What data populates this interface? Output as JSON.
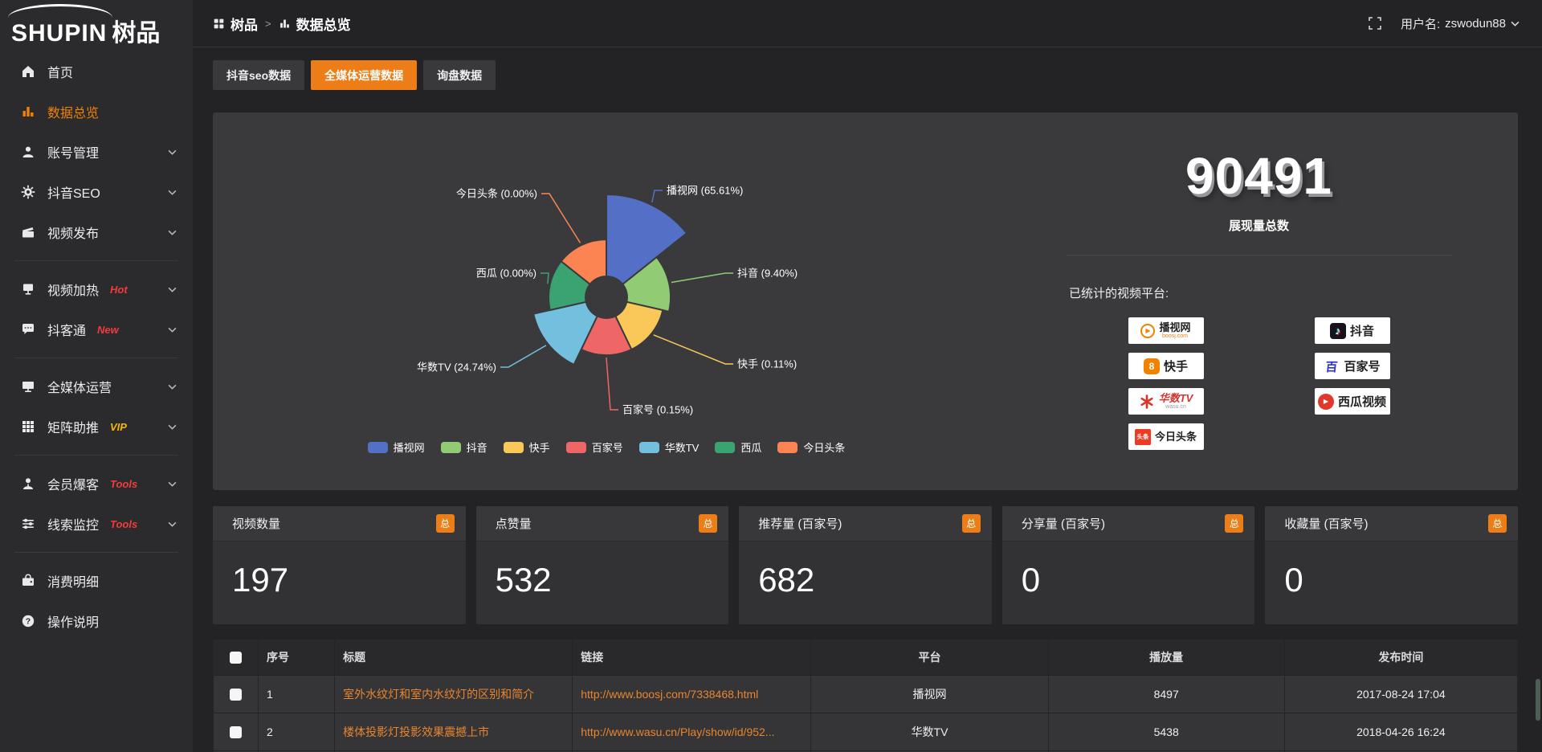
{
  "colors": {
    "accent_orange": "#ed7d17",
    "sidebar_active_orange": "#f08200",
    "link_orange": "#e8852e",
    "badge_red": "#f33b3b",
    "badge_gold": "#f5b60d",
    "panel_bg": "#3a3a3d",
    "page_bg": "#232326",
    "sidebar_bg": "#2b2b2e"
  },
  "logo": {
    "brand_en": "SHUPIN",
    "brand_cn": "树品"
  },
  "header": {
    "breadcrumb": [
      {
        "label": "树品",
        "icon": "app"
      },
      {
        "label": "数据总览",
        "icon": "chart"
      }
    ],
    "separator": ">",
    "username_label": "用户名:",
    "username": "zswodun88"
  },
  "sidebar": {
    "items": [
      {
        "id": "home",
        "label": "首页",
        "icon": "home"
      },
      {
        "id": "data-overview",
        "label": "数据总览",
        "icon": "chart",
        "active": true
      },
      {
        "id": "account-manage",
        "label": "账号管理",
        "icon": "user",
        "chevron": true
      },
      {
        "id": "douyin-seo",
        "label": "抖音SEO",
        "icon": "gear",
        "chevron": true
      },
      {
        "id": "video-publish",
        "label": "视频发布",
        "icon": "clapper",
        "chevron": true,
        "divider_after": true
      },
      {
        "id": "video-heat",
        "label": "视频加热",
        "icon": "heat",
        "badge": "Hot",
        "badge_color": "#f33b3b",
        "chevron": true
      },
      {
        "id": "douketong",
        "label": "抖客通",
        "icon": "comment",
        "badge": "New",
        "badge_color": "#f33b3b",
        "chevron": true,
        "divider_after": true
      },
      {
        "id": "media-operation",
        "label": "全媒体运营",
        "icon": "monitor",
        "chevron": true
      },
      {
        "id": "matrix-boost",
        "label": "矩阵助推",
        "icon": "grid",
        "badge": "VIP",
        "badge_color": "#f5b60d",
        "chevron": true,
        "divider_after": true
      },
      {
        "id": "member-burst",
        "label": "会员爆客",
        "icon": "person",
        "badge": "Tools",
        "badge_color": "#f33b3b",
        "chevron": true
      },
      {
        "id": "clue-monitor",
        "label": "线索监控",
        "icon": "sliders",
        "badge": "Tools",
        "badge_color": "#f33b3b",
        "chevron": true,
        "divider_after": true
      },
      {
        "id": "consume-detail",
        "label": "消费明细",
        "icon": "wallet"
      },
      {
        "id": "operation-help",
        "label": "操作说明",
        "icon": "question"
      }
    ]
  },
  "tabs": [
    {
      "label": "抖音seo数据",
      "active": false
    },
    {
      "label": "全媒体运营数据",
      "active": true
    },
    {
      "label": "询盘数据",
      "active": false
    }
  ],
  "chart_data": {
    "type": "pie",
    "variant": "nightingale-rose",
    "categories": [
      "播视网",
      "抖音",
      "快手",
      "百家号",
      "华数TV",
      "西瓜",
      "今日头条"
    ],
    "values": [
      65.61,
      9.4,
      0.11,
      0.15,
      24.74,
      0,
      0
    ],
    "percent_labels": [
      "65.61%",
      "9.40%",
      "0.11%",
      "0.15%",
      "24.74%",
      "0.00%",
      "0.00%"
    ],
    "colors": [
      "#5470c6",
      "#91cc75",
      "#fac858",
      "#ee6666",
      "#73c0de",
      "#3ba272",
      "#fc8452"
    ],
    "legend": [
      "播视网",
      "抖音",
      "快手",
      "百家号",
      "华数TV",
      "西瓜",
      "今日头条"
    ],
    "legend_position": "bottom"
  },
  "summary": {
    "total_value": "90491",
    "total_label": "展现量总数",
    "platforms_title": "已统计的视频平台:",
    "platforms": [
      {
        "id": "boosj",
        "name": "播视网",
        "sub": "boosj.com",
        "icon_text": "▶"
      },
      {
        "id": "douyin",
        "name": "抖音",
        "icon_text": "♪"
      },
      {
        "id": "kuaishou",
        "name": "快手",
        "icon_text": "8"
      },
      {
        "id": "baijiahao",
        "name": "百家号",
        "icon_text": "百"
      },
      {
        "id": "wasu",
        "name": "华数TV",
        "sub": "wasu.cn"
      },
      {
        "id": "xigua",
        "name": "西瓜视频",
        "icon_text": "▶"
      },
      {
        "id": "toutiao",
        "name": "今日头条",
        "icon_text": "头条"
      }
    ]
  },
  "stat_cards": [
    {
      "label": "视频数量",
      "badge": "总",
      "value": "197"
    },
    {
      "label": "点赞量",
      "badge": "总",
      "value": "532"
    },
    {
      "label": "推荐量 (百家号)",
      "badge": "总",
      "value": "682"
    },
    {
      "label": "分享量 (百家号)",
      "badge": "总",
      "value": "0"
    },
    {
      "label": "收藏量 (百家号)",
      "badge": "总",
      "value": "0"
    }
  ],
  "table": {
    "headers": [
      "序号",
      "标题",
      "链接",
      "平台",
      "播放量",
      "发布时间"
    ],
    "rows": [
      {
        "num": "1",
        "title": "室外水纹灯和室内水纹灯的区别和简介",
        "link": "http://www.boosj.com/7338468.html",
        "platform": "播视网",
        "plays": "8497",
        "time": "2017-08-24 17:04"
      },
      {
        "num": "2",
        "title": "楼体投影灯投影效果震撼上市",
        "link": "http://www.wasu.cn/Play/show/id/952...",
        "platform": "华数TV",
        "plays": "5438",
        "time": "2018-04-26 16:24"
      }
    ]
  }
}
